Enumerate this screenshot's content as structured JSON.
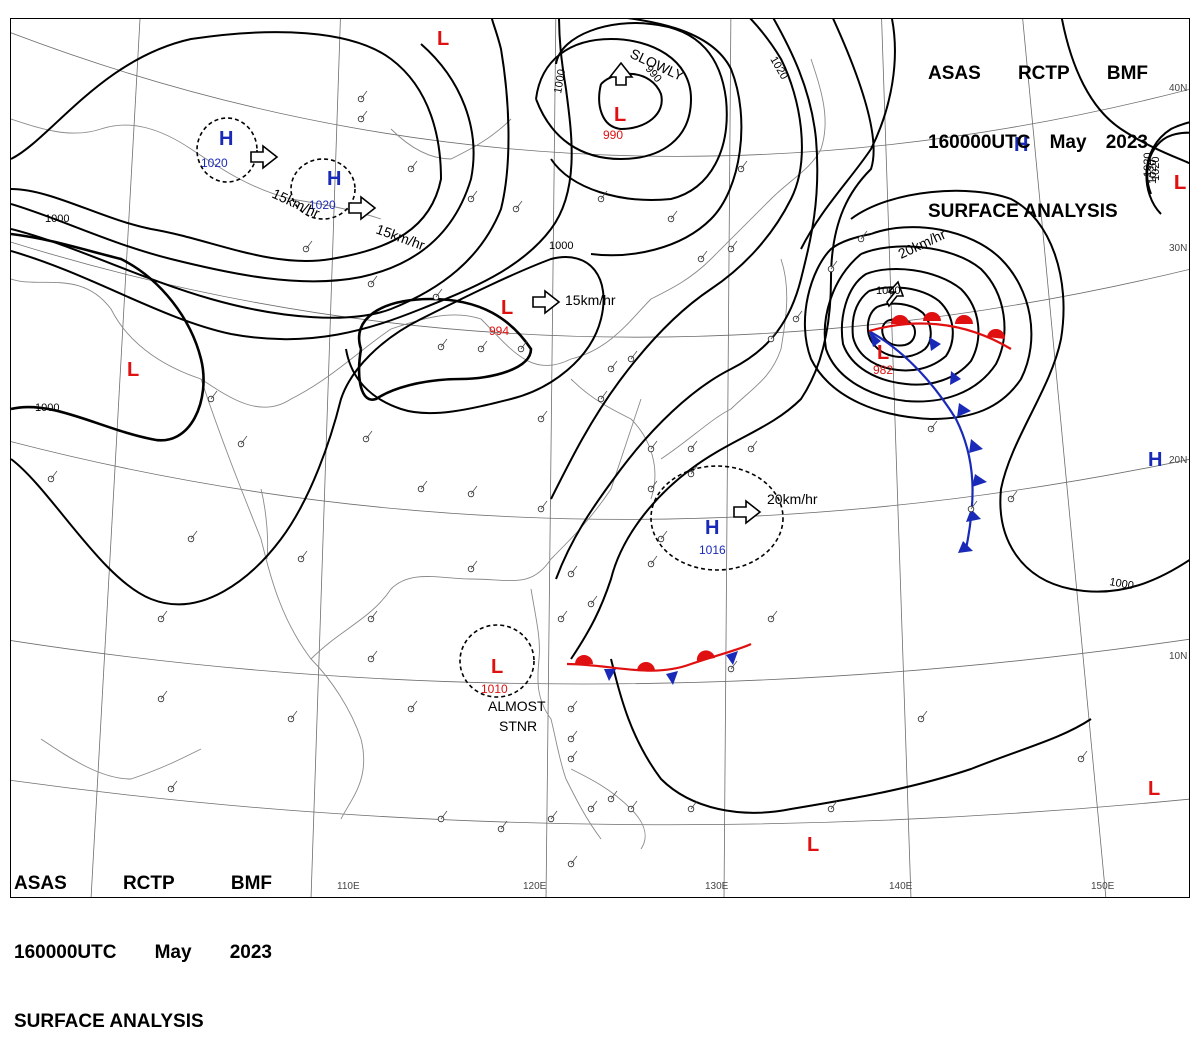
{
  "header": {
    "line1": [
      "ASAS",
      "RCTP",
      "BMF"
    ],
    "line2": [
      "160000UTC",
      "May",
      "2023"
    ],
    "line3": "SURFACE ANALYSIS"
  },
  "axes": {
    "lon_labels": [
      "110E",
      "120E",
      "130E",
      "140E",
      "150E"
    ],
    "lat_labels": [
      "40N",
      "30N",
      "20N",
      "10N"
    ]
  },
  "pressure_centers": [
    {
      "type": "H",
      "value": "1020",
      "color": "#1a2ab8"
    },
    {
      "type": "H",
      "value": "1020",
      "color": "#1a2ab8"
    },
    {
      "type": "L",
      "value": "990",
      "color": "#e01010"
    },
    {
      "type": "L",
      "value": "994",
      "color": "#e01010"
    },
    {
      "type": "L",
      "value": "982",
      "color": "#e01010"
    },
    {
      "type": "H",
      "value": "1016",
      "color": "#1a2ab8"
    },
    {
      "type": "L",
      "value": "1010",
      "color": "#e01010"
    },
    {
      "type": "L",
      "value": "",
      "color": "#e01010"
    },
    {
      "type": "L",
      "value": "",
      "color": "#e01010"
    },
    {
      "type": "L",
      "value": "",
      "color": "#e01010"
    },
    {
      "type": "L",
      "value": "",
      "color": "#e01010"
    },
    {
      "type": "H",
      "value": "",
      "color": "#1a2ab8"
    },
    {
      "type": "H",
      "value": "",
      "color": "#1a2ab8"
    },
    {
      "type": "L",
      "value": "",
      "color": "#e01010"
    },
    {
      "type": "L",
      "value": "1020",
      "color": "#e01010"
    }
  ],
  "isobar_labels": [
    "1000",
    "1000",
    "1000",
    "1000",
    "1000",
    "1000",
    "1020",
    "1020",
    "1020",
    "990"
  ],
  "movement_labels": [
    "15km/hr",
    "15km/hr",
    "15km/hr",
    "SLOWLY",
    "20km/hr",
    "20km/hr",
    "ALMOST",
    "STNR"
  ],
  "colors": {
    "low": "#e01010",
    "high": "#1a2ab8",
    "isobar": "#000000",
    "grid": "#6d6d6d",
    "coast": "#8a8a8a"
  }
}
